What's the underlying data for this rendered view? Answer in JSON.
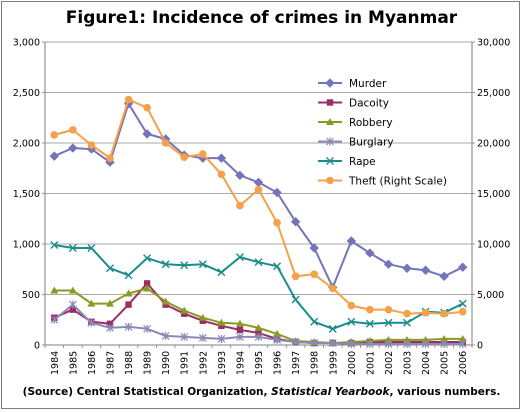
{
  "chart_data": {
    "type": "line",
    "title": "Figure1: Incidence of crimes in Myanmar",
    "source": {
      "prefix": "(Source) Central Statistical Organization,",
      "publication": "Statistical Yearbook",
      "suffix": ", various numbers."
    },
    "x": [
      "1984",
      "1985",
      "1986",
      "1987",
      "1988",
      "1989",
      "1990",
      "1991",
      "1992",
      "1993",
      "1994",
      "1995",
      "1996",
      "1997",
      "1998",
      "1999",
      "2000",
      "2001",
      "2002",
      "2003",
      "2004",
      "2005",
      "2006"
    ],
    "y_left": {
      "ylim": [
        0,
        3000
      ],
      "ticks": [
        "0",
        "500",
        "1,000",
        "1,500",
        "2,000",
        "2,500",
        "3,000"
      ]
    },
    "y_right": {
      "ylim": [
        0,
        30000
      ],
      "ticks": [
        "0",
        "5,000",
        "10,000",
        "15,000",
        "20,000",
        "25,000",
        "30,000"
      ]
    },
    "legend_position": "right",
    "series": [
      {
        "name": "Murder",
        "axis": "left",
        "color": "#7474b8",
        "marker": "diamond",
        "values": [
          1870,
          1950,
          1940,
          1810,
          2390,
          2090,
          2040,
          1880,
          1850,
          1850,
          1680,
          1610,
          1510,
          1220,
          960,
          570,
          1030,
          910,
          800,
          760,
          740,
          680,
          770
        ]
      },
      {
        "name": "Dacoity",
        "axis": "left",
        "color": "#9b2d62",
        "marker": "square",
        "values": [
          270,
          350,
          230,
          210,
          400,
          610,
          400,
          310,
          240,
          190,
          150,
          120,
          60,
          30,
          20,
          20,
          20,
          30,
          30,
          30,
          30,
          30,
          30
        ]
      },
      {
        "name": "Robbery",
        "axis": "left",
        "color": "#8a9a23",
        "marker": "triangle",
        "values": [
          540,
          540,
          410,
          410,
          510,
          560,
          430,
          340,
          270,
          220,
          210,
          170,
          110,
          40,
          30,
          20,
          30,
          40,
          50,
          50,
          50,
          60,
          60
        ]
      },
      {
        "name": "Burglary",
        "axis": "left",
        "color": "#8a8ab8",
        "marker": "star",
        "values": [
          250,
          400,
          220,
          170,
          180,
          160,
          90,
          80,
          70,
          60,
          80,
          80,
          50,
          30,
          20,
          20,
          10,
          10,
          10,
          10,
          10,
          10,
          10
        ]
      },
      {
        "name": "Rape",
        "axis": "left",
        "color": "#1a8c8c",
        "marker": "x",
        "values": [
          990,
          960,
          960,
          760,
          690,
          860,
          800,
          790,
          800,
          720,
          870,
          820,
          780,
          450,
          230,
          160,
          230,
          210,
          220,
          220,
          330,
          320,
          410
        ]
      },
      {
        "name": "Theft (Right Scale)",
        "axis": "right",
        "color": "#f5a04a",
        "marker": "circle",
        "values": [
          20800,
          21300,
          19800,
          18500,
          24300,
          23500,
          20000,
          18600,
          18900,
          16900,
          13800,
          15400,
          12100,
          6800,
          7000,
          5600,
          3900,
          3500,
          3500,
          3100,
          3200,
          3100,
          3300
        ]
      }
    ]
  }
}
